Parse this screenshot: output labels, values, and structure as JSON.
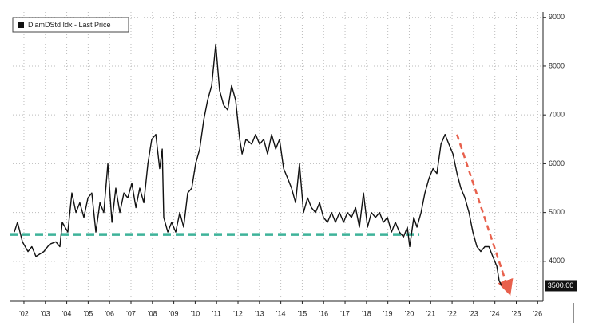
{
  "chart_data": {
    "type": "line",
    "legend_position": "upper left",
    "grid": true,
    "x": [
      2002.05,
      2002.2,
      2002.43,
      2002.69,
      2002.87,
      2003.06,
      2003.43,
      2003.7,
      2003.99,
      2004.18,
      2004.29,
      2004.55,
      2004.74,
      2004.93,
      2005.11,
      2005.3,
      2005.49,
      2005.67,
      2005.86,
      2006.05,
      2006.23,
      2006.42,
      2006.61,
      2006.79,
      2006.98,
      2007.17,
      2007.35,
      2007.54,
      2007.73,
      2007.91,
      2008.1,
      2008.29,
      2008.47,
      2008.66,
      2008.84,
      2008.96,
      2009.03,
      2009.22,
      2009.4,
      2009.59,
      2009.78,
      2009.96,
      2010.15,
      2010.34,
      2010.52,
      2010.71,
      2010.9,
      2011.08,
      2011.27,
      2011.46,
      2011.64,
      2011.83,
      2012.02,
      2012.2,
      2012.39,
      2012.58,
      2012.69,
      2012.87,
      2013.14,
      2013.32,
      2013.51,
      2013.7,
      2013.88,
      2014.07,
      2014.26,
      2014.44,
      2014.63,
      2014.82,
      2015.0,
      2015.19,
      2015.37,
      2015.56,
      2015.75,
      2015.93,
      2016.12,
      2016.31,
      2016.49,
      2016.68,
      2016.87,
      2017.05,
      2017.24,
      2017.43,
      2017.61,
      2017.8,
      2017.99,
      2018.17,
      2018.36,
      2018.55,
      2018.73,
      2018.92,
      2019.11,
      2019.29,
      2019.48,
      2019.67,
      2019.85,
      2020.04,
      2020.23,
      2020.41,
      2020.52,
      2020.71,
      2020.86,
      2021.05,
      2021.23,
      2021.42,
      2021.61,
      2021.79,
      2021.98,
      2022.17,
      2022.35,
      2022.54,
      2022.73,
      2022.91,
      2023.1,
      2023.29,
      2023.47,
      2023.66,
      2023.84,
      2024.03,
      2024.22,
      2024.4,
      2024.59,
      2024.7,
      2024.82
    ],
    "series": [
      {
        "name": "DiamDStd Idx - Last Price",
        "color": "#111111",
        "values": [
          4600,
          4800,
          4400,
          4200,
          4300,
          4100,
          4200,
          4350,
          4400,
          4300,
          4800,
          4600,
          5400,
          5000,
          5200,
          4900,
          5300,
          5400,
          4600,
          5200,
          5000,
          6000,
          4800,
          5500,
          5000,
          5400,
          5300,
          5600,
          5100,
          5500,
          5200,
          6000,
          6500,
          6600,
          5900,
          6300,
          4900,
          4600,
          4800,
          4600,
          5000,
          4700,
          5400,
          5500,
          6000,
          6300,
          6900,
          7300,
          7600,
          8450,
          7500,
          7200,
          7100,
          7600,
          7300,
          6500,
          6200,
          6500,
          6400,
          6600,
          6400,
          6500,
          6200,
          6600,
          6300,
          6500,
          5900,
          5700,
          5500,
          5200,
          6000,
          5000,
          5300,
          5100,
          5000,
          5200,
          4900,
          4800,
          5000,
          4800,
          5000,
          4800,
          5000,
          4900,
          5100,
          4700,
          5400,
          4700,
          5000,
          4900,
          5000,
          4800,
          4900,
          4600,
          4800,
          4600,
          4500,
          4700,
          4300,
          4900,
          4700,
          5000,
          5400,
          5700,
          5900,
          5800,
          6400,
          6600,
          6400,
          6200,
          5800,
          5500,
          5300,
          5000,
          4600,
          4300,
          4200,
          4300,
          4300,
          4100,
          3900,
          3600,
          3500
        ]
      }
    ],
    "last_price": {
      "value": 3500,
      "label": "3500.00"
    },
    "annotations": [
      {
        "type": "hline",
        "color": "#3fb39a",
        "y": 4550,
        "x": [
          2001.83,
          2020.97
        ]
      },
      {
        "type": "arrow",
        "color": "#e8604c",
        "x": [
          2022.73,
          2025.11
        ],
        "y": [
          6600,
          3450
        ]
      }
    ],
    "xlim": [
      2001.83,
      2026.75
    ],
    "ylim": [
      3230,
      9110
    ],
    "xticks": [
      {
        "value": 2002.5,
        "label": "'02"
      },
      {
        "value": 2003.5,
        "label": "'03"
      },
      {
        "value": 2004.5,
        "label": "'04"
      },
      {
        "value": 2005.5,
        "label": "'05"
      },
      {
        "value": 2006.5,
        "label": "'06"
      },
      {
        "value": 2007.5,
        "label": "'07"
      },
      {
        "value": 2008.5,
        "label": "'08"
      },
      {
        "value": 2009.5,
        "label": "'09"
      },
      {
        "value": 2010.5,
        "label": "'10"
      },
      {
        "value": 2011.5,
        "label": "'11"
      },
      {
        "value": 2012.5,
        "label": "'12"
      },
      {
        "value": 2013.5,
        "label": "'13"
      },
      {
        "value": 2014.5,
        "label": "'14"
      },
      {
        "value": 2015.5,
        "label": "'15"
      },
      {
        "value": 2016.5,
        "label": "'16"
      },
      {
        "value": 2017.5,
        "label": "'17"
      },
      {
        "value": 2018.5,
        "label": "'18"
      },
      {
        "value": 2019.5,
        "label": "'19"
      },
      {
        "value": 2020.5,
        "label": "'20"
      },
      {
        "value": 2021.5,
        "label": "'21"
      },
      {
        "value": 2022.5,
        "label": "'22"
      },
      {
        "value": 2023.5,
        "label": "'23"
      },
      {
        "value": 2024.5,
        "label": "'24"
      },
      {
        "value": 2025.5,
        "label": "'25"
      },
      {
        "value": 2026.5,
        "label": "'26"
      }
    ],
    "yticks": [
      4000,
      5000,
      6000,
      7000,
      8000,
      9000
    ]
  }
}
